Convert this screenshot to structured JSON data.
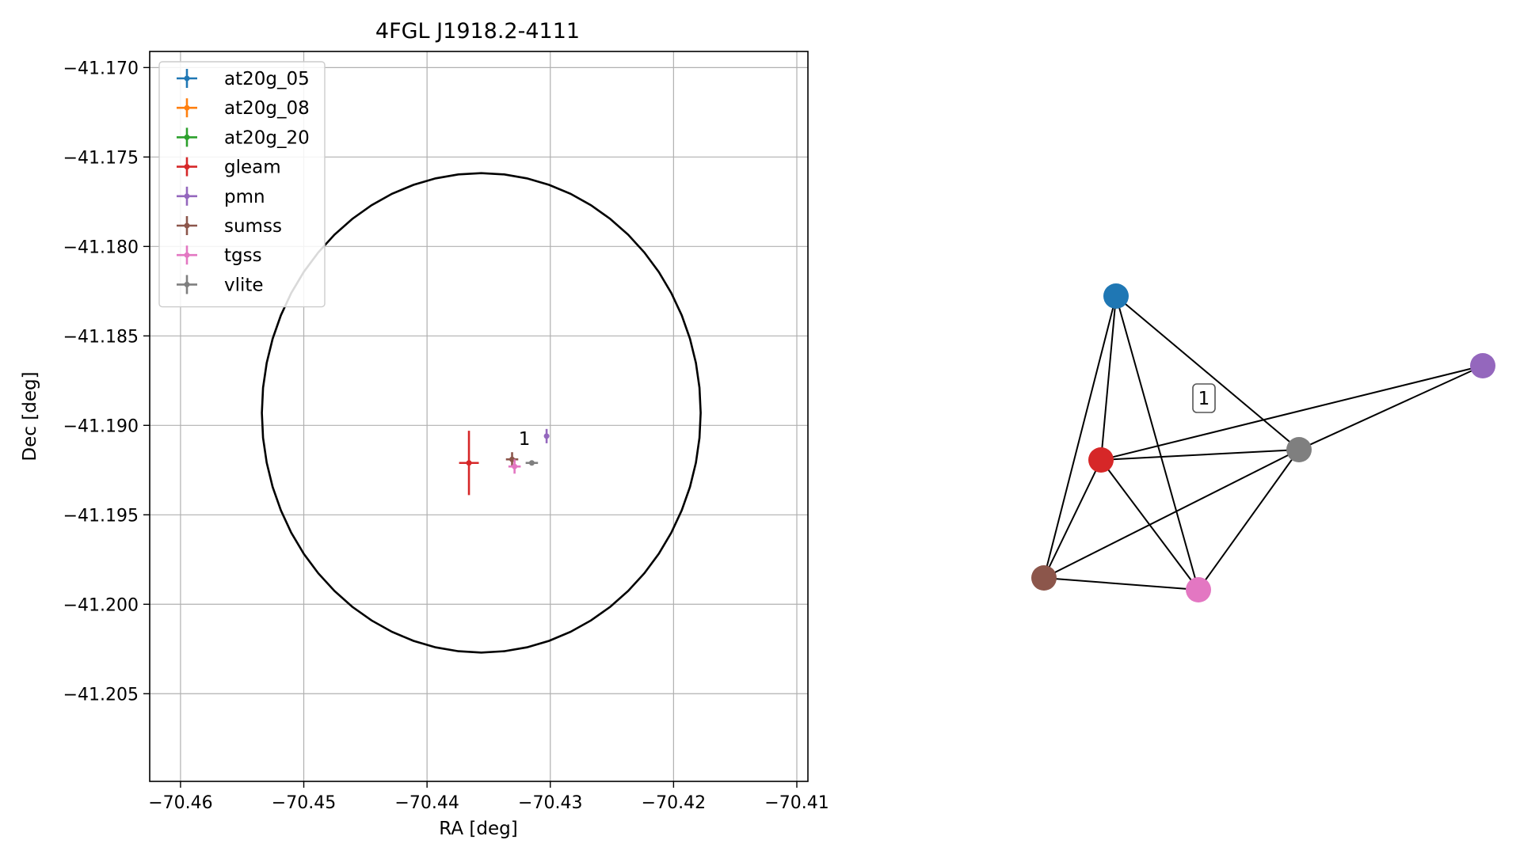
{
  "chart_data": [
    {
      "type": "scatter",
      "title": "4FGL J1918.2-4111",
      "xlabel": "RA [deg]",
      "ylabel": "Dec [deg]",
      "xlim": [
        -70.4625,
        -70.4091
      ],
      "ylim": [
        -41.2099,
        -41.1691
      ],
      "x_ticks": [
        -70.46,
        -70.45,
        -70.44,
        -70.43,
        -70.42,
        -70.41
      ],
      "x_tick_labels": [
        "−70.46",
        "−70.45",
        "−70.44",
        "−70.43",
        "−70.42",
        "−70.41"
      ],
      "y_ticks": [
        -41.17,
        -41.175,
        -41.18,
        -41.185,
        -41.19,
        -41.195,
        -41.2,
        -41.205
      ],
      "y_tick_labels": [
        "−41.170",
        "−41.175",
        "−41.180",
        "−41.185",
        "−41.190",
        "−41.195",
        "−41.200",
        "−41.205"
      ],
      "grid": true,
      "legend_position": "upper-left",
      "series": [
        {
          "name": "at20g_05",
          "color": "#1f77b4",
          "points": []
        },
        {
          "name": "at20g_08",
          "color": "#ff7f0e",
          "points": []
        },
        {
          "name": "at20g_20",
          "color": "#2ca02c",
          "points": []
        },
        {
          "name": "gleam",
          "color": "#d62728",
          "points": [
            {
              "x": -70.4366,
              "y": -41.1921,
              "xerr": 0.0008,
              "yerr": 0.0018
            }
          ]
        },
        {
          "name": "pmn",
          "color": "#9467bd",
          "points": [
            {
              "x": -70.4303,
              "y": -41.1906,
              "xerr": 0.0002,
              "yerr": 0.0004
            }
          ]
        },
        {
          "name": "sumss",
          "color": "#8c564b",
          "points": [
            {
              "x": -70.4331,
              "y": -41.1919,
              "xerr": 0.0005,
              "yerr": 0.0004
            }
          ]
        },
        {
          "name": "tgss",
          "color": "#e377c2",
          "points": [
            {
              "x": -70.4329,
              "y": -41.1923,
              "xerr": 0.0005,
              "yerr": 0.0004
            }
          ]
        },
        {
          "name": "vlite",
          "color": "#7f7f7f",
          "points": [
            {
              "x": -70.4315,
              "y": -41.1921,
              "xerr": 0.0005,
              "yerr": 0.0001
            }
          ]
        }
      ],
      "ellipse": {
        "center_x": -70.4356,
        "center_y": -41.1893,
        "semi_major_x": 0.0178,
        "semi_minor_y": 0.0134,
        "color": "#000000"
      },
      "annotations": [
        {
          "text": "1",
          "x": -70.4321,
          "y": -41.1911
        }
      ]
    },
    {
      "type": "graph",
      "nodes": [
        {
          "id": "at20g",
          "color": "#1f77b4"
        },
        {
          "id": "pmn",
          "color": "#9467bd"
        },
        {
          "id": "gleam",
          "color": "#d62728"
        },
        {
          "id": "vlite",
          "color": "#7f7f7f"
        },
        {
          "id": "sumss",
          "color": "#8c564b"
        },
        {
          "id": "tgss",
          "color": "#e377c2"
        }
      ],
      "edges": [
        [
          "at20g",
          "gleam"
        ],
        [
          "at20g",
          "sumss"
        ],
        [
          "at20g",
          "tgss"
        ],
        [
          "at20g",
          "vlite"
        ],
        [
          "pmn",
          "gleam"
        ],
        [
          "pmn",
          "vlite"
        ],
        [
          "gleam",
          "vlite"
        ],
        [
          "gleam",
          "sumss"
        ],
        [
          "gleam",
          "tgss"
        ],
        [
          "vlite",
          "sumss"
        ],
        [
          "vlite",
          "tgss"
        ],
        [
          "sumss",
          "tgss"
        ]
      ],
      "label": "1"
    }
  ]
}
